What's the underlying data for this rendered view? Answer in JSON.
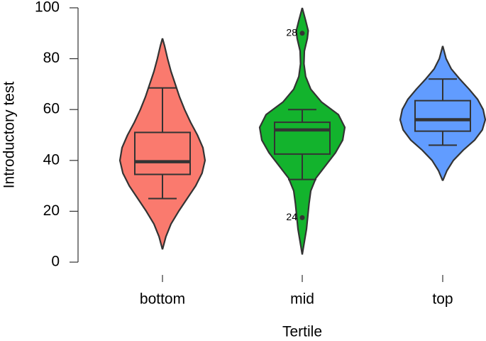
{
  "chart_data": {
    "type": "violin",
    "x_label": "Tertile",
    "y_label": "Introductory test",
    "ylim": [
      0,
      100
    ],
    "yticks": [
      0,
      20,
      40,
      60,
      80,
      100
    ],
    "groups": [
      {
        "name": "bottom",
        "color": "#fa7a6e",
        "density_y": [
          5,
          10,
          15,
          20,
          25,
          30,
          35,
          40,
          45,
          50,
          55,
          60,
          65,
          70,
          75,
          80,
          85,
          88
        ],
        "density": [
          0,
          0.08,
          0.2,
          0.38,
          0.58,
          0.78,
          0.93,
          1.0,
          0.95,
          0.82,
          0.66,
          0.52,
          0.4,
          0.3,
          0.2,
          0.12,
          0.05,
          0
        ],
        "whisker_low": 25,
        "q1": 34.5,
        "median": 39.5,
        "q3": 51,
        "whisker_high": 68.5,
        "outliers": [],
        "outlier_labels": []
      },
      {
        "name": "mid",
        "color": "#13b32d",
        "density_y": [
          3,
          8,
          13,
          18,
          23,
          28,
          33,
          38,
          43,
          48,
          53,
          58,
          63,
          68,
          73,
          78,
          83,
          88,
          91,
          95,
          100
        ],
        "density": [
          0,
          0.05,
          0.1,
          0.13,
          0.16,
          0.2,
          0.32,
          0.55,
          0.78,
          0.95,
          1.0,
          0.85,
          0.45,
          0.2,
          0.08,
          0.04,
          0.05,
          0.12,
          0.14,
          0.08,
          0
        ],
        "whisker_low": 32.5,
        "q1": 42.5,
        "median": 52,
        "q3": 55,
        "whisker_high": 60,
        "outliers": [
          90,
          17.5
        ],
        "outlier_labels": [
          "28",
          "24"
        ]
      },
      {
        "name": "top",
        "color": "#619cff",
        "density_y": [
          32,
          36,
          40,
          44,
          48,
          52,
          56,
          60,
          64,
          68,
          72,
          76,
          80,
          85
        ],
        "density": [
          0,
          0.1,
          0.25,
          0.48,
          0.75,
          0.93,
          1.0,
          0.95,
          0.82,
          0.62,
          0.4,
          0.2,
          0.08,
          0
        ],
        "whisker_low": 46,
        "q1": 51.5,
        "median": 56,
        "q3": 63.5,
        "whisker_high": 72,
        "outliers": [],
        "outlier_labels": []
      }
    ]
  }
}
